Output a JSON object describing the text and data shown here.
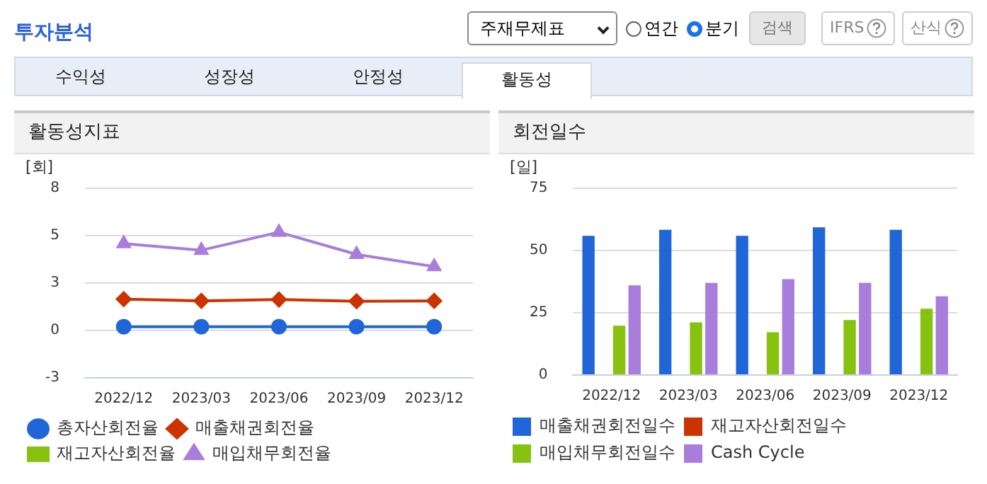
{
  "chart_data": [
    {
      "type": "other",
      "title": "투자분석",
      "annotations": [
        "주재무제표",
        "연간",
        "분기",
        "검색",
        "IFRS",
        "산식",
        "수익성",
        "성장성",
        "안정성",
        "활동성"
      ]
    },
    {
      "type": "line",
      "title": "활동성지표",
      "ylabel": "[회]",
      "categories": [
        "2022/12",
        "2023/03",
        "2023/06",
        "2023/09",
        "2023/12"
      ],
      "ylim": [
        -2.5,
        7.5
      ],
      "yticks": [
        {
          "value": -2.5,
          "label": "-3"
        },
        0,
        {
          "value": 2.5,
          "label": "3"
        },
        5,
        {
          "value": 7.5,
          "label": "8"
        }
      ],
      "grid": "y",
      "legend": "bottom",
      "series": [
        {
          "name": "총자산회전율",
          "color": "#2166d8",
          "marker": "circle",
          "values": [
            0.2,
            0.2,
            0.2,
            0.2,
            0.2
          ]
        },
        {
          "name": "매출채권회전율",
          "color": "#cc3300",
          "marker": "diamond",
          "values": [
            1.65,
            1.56,
            1.63,
            1.54,
            1.56
          ]
        },
        {
          "name": "재고자산회전율",
          "color": "#86c20f",
          "marker": "square",
          "values": [
            null,
            null,
            null,
            null,
            null
          ]
        },
        {
          "name": "매입채무회전율",
          "color": "#a87ddc",
          "marker": "triangle",
          "values": [
            4.58,
            4.23,
            5.18,
            4.01,
            3.37
          ]
        }
      ]
    },
    {
      "type": "bar",
      "title": "회전일수",
      "ylabel": "[일]",
      "categories": [
        "2022/12",
        "2023/03",
        "2023/06",
        "2023/09",
        "2023/12"
      ],
      "ylim": [
        0,
        75
      ],
      "yticks": [
        0,
        25,
        50,
        75
      ],
      "grid": "y",
      "legend": "bottom",
      "series": [
        {
          "name": "매출채권회전일수",
          "color": "#2166d8",
          "values": [
            55.9,
            58.3,
            55.9,
            59.3,
            58.3
          ]
        },
        {
          "name": "재고자산회전일수",
          "color": "#cc3300",
          "values": [
            null,
            null,
            null,
            null,
            null
          ]
        },
        {
          "name": "매입채무회전일수",
          "color": "#86c20f",
          "values": [
            19.8,
            21.2,
            17.2,
            22.1,
            26.6
          ]
        },
        {
          "name": "Cash Cycle",
          "color": "#a87ddc",
          "values": [
            36.0,
            37.0,
            38.5,
            37.0,
            31.6
          ]
        }
      ]
    }
  ]
}
